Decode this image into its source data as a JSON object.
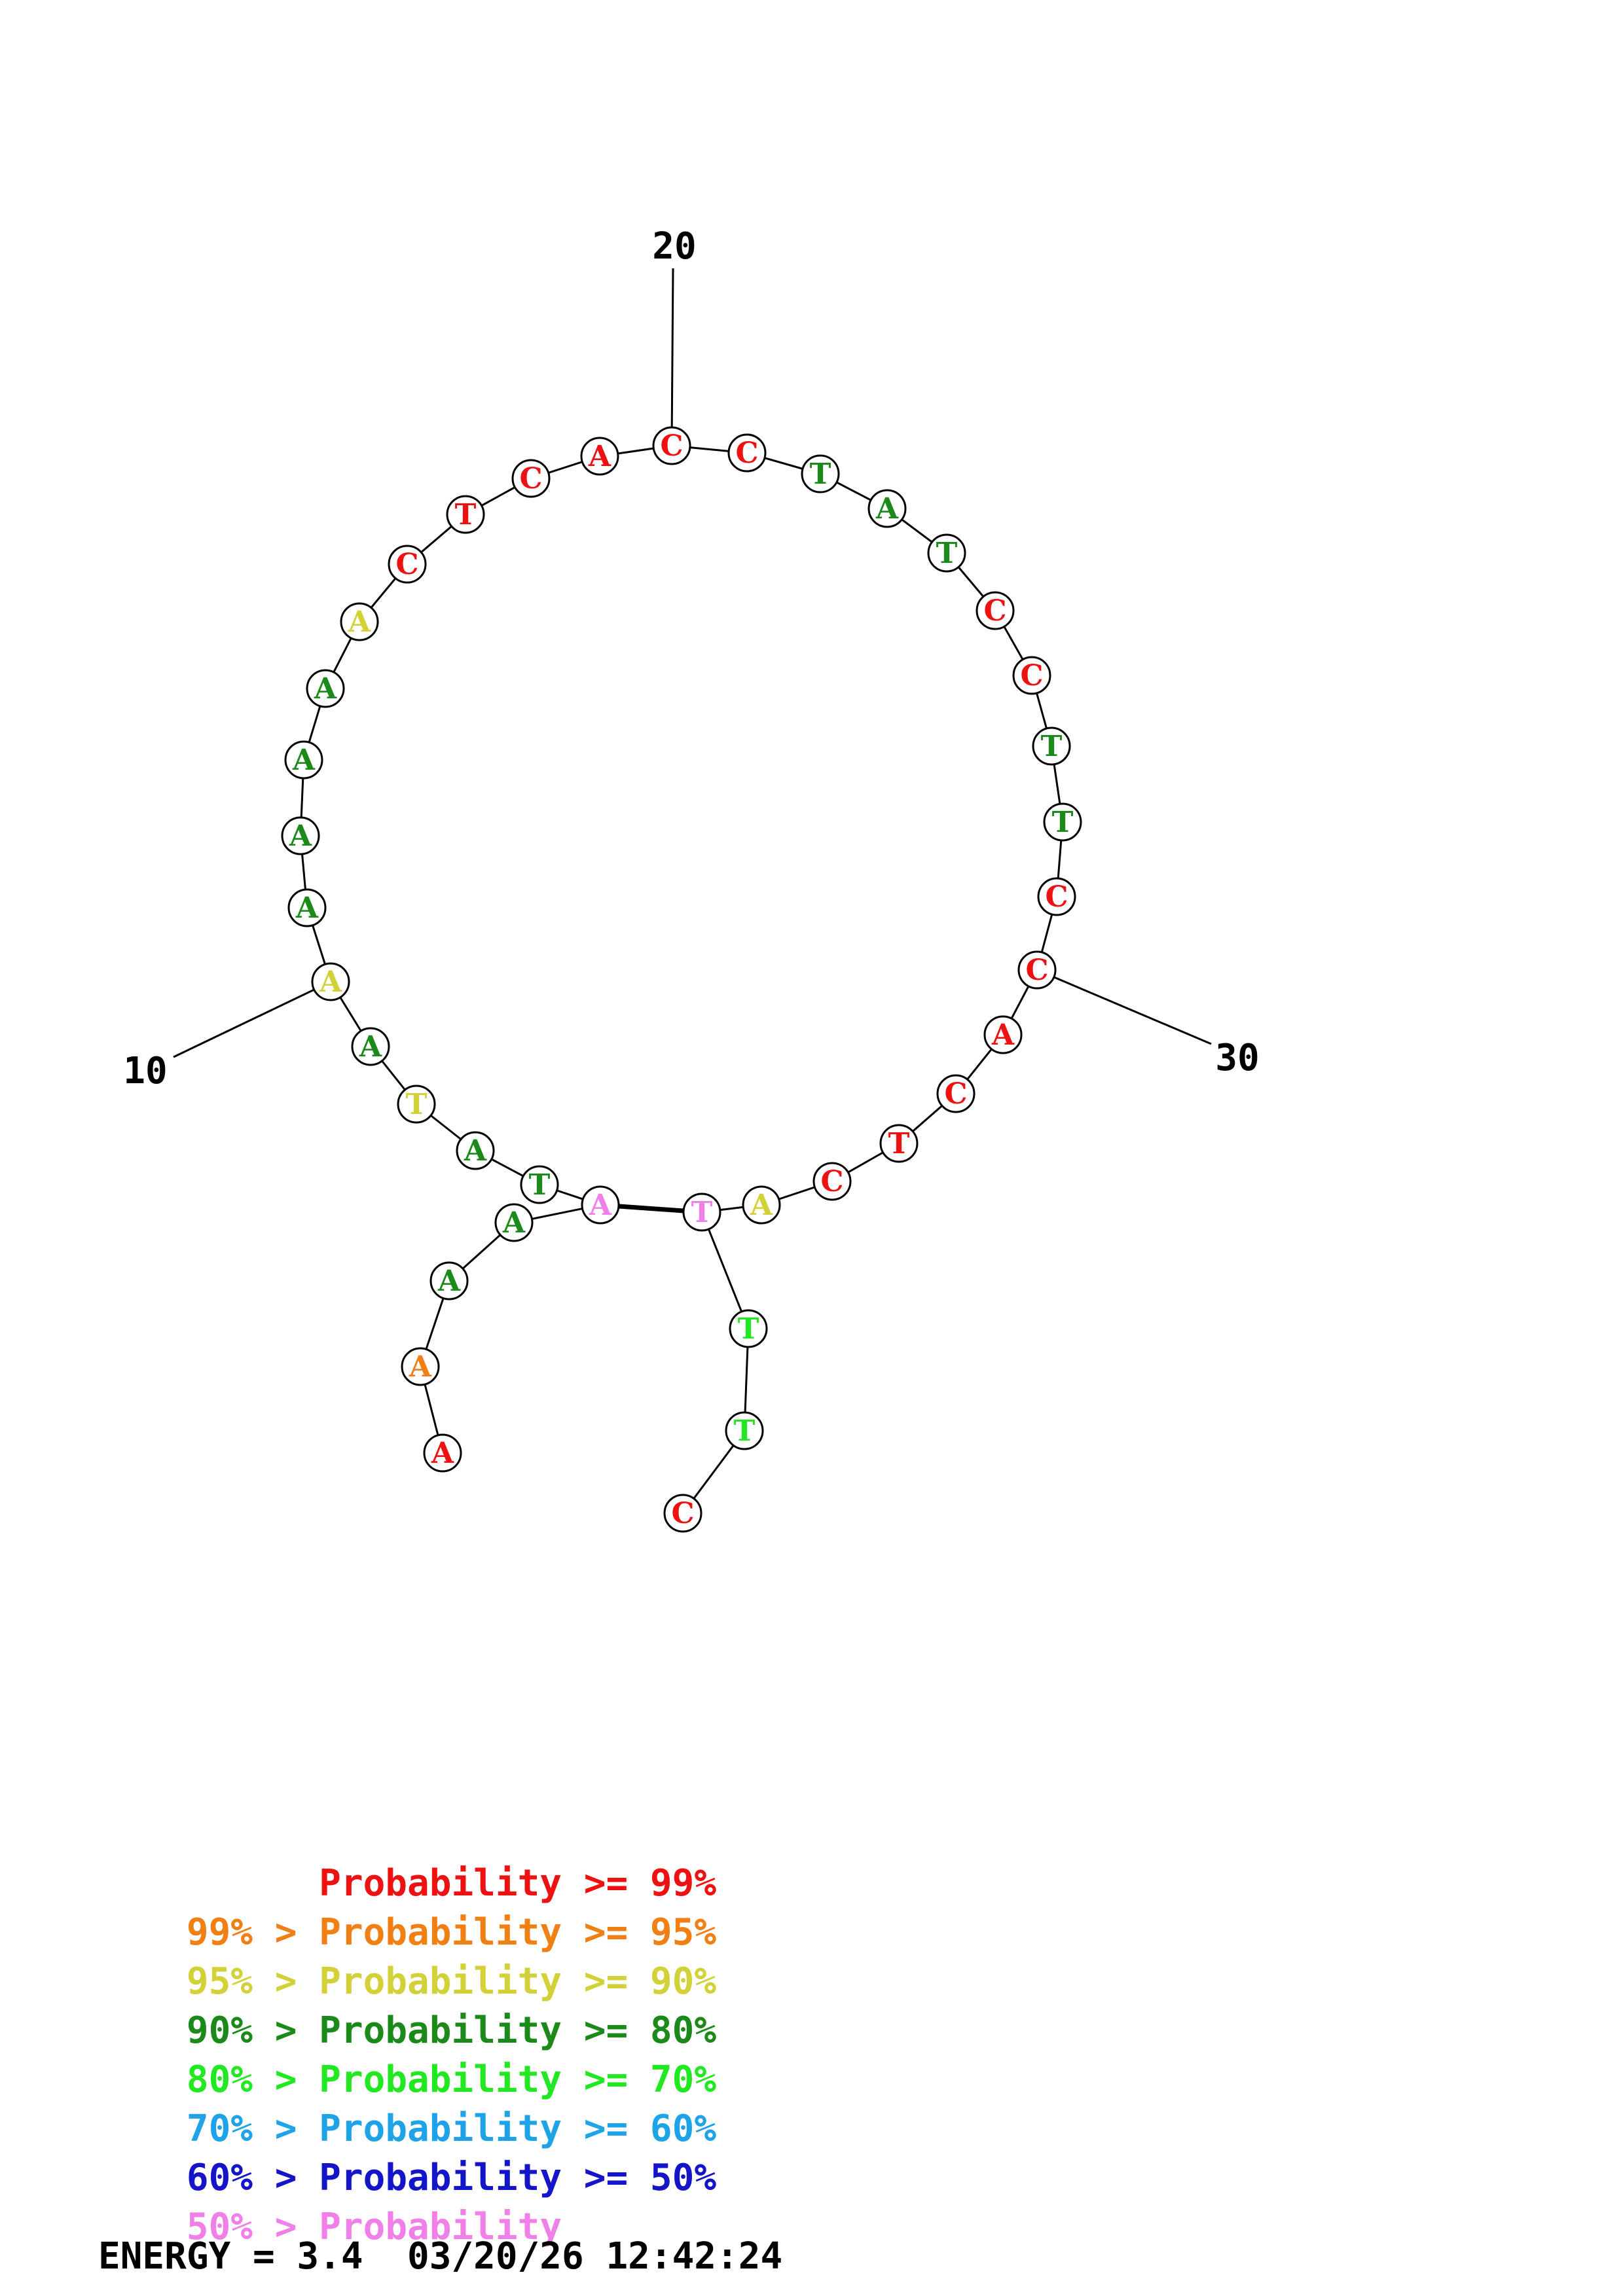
{
  "colors": {
    "p99": "#ee1111",
    "p95": "#f07f14",
    "p90": "#d2d238",
    "p80": "#1b8a1b",
    "p70": "#22e822",
    "p60": "#1ea3e8",
    "p50": "#1414c8",
    "plt50": "#f07fe8"
  },
  "sequence": [
    {
      "n": 1,
      "base": "A",
      "color": "p99"
    },
    {
      "n": 2,
      "base": "A",
      "color": "p95"
    },
    {
      "n": 3,
      "base": "A",
      "color": "p80"
    },
    {
      "n": 4,
      "base": "A",
      "color": "p80"
    },
    {
      "n": 5,
      "base": "A",
      "color": "plt50"
    },
    {
      "n": 6,
      "base": "T",
      "color": "p80"
    },
    {
      "n": 7,
      "base": "A",
      "color": "p80"
    },
    {
      "n": 8,
      "base": "T",
      "color": "p90"
    },
    {
      "n": 9,
      "base": "A",
      "color": "p80"
    },
    {
      "n": 10,
      "base": "A",
      "color": "p90"
    },
    {
      "n": 11,
      "base": "A",
      "color": "p80"
    },
    {
      "n": 12,
      "base": "A",
      "color": "p80"
    },
    {
      "n": 13,
      "base": "A",
      "color": "p80"
    },
    {
      "n": 14,
      "base": "A",
      "color": "p80"
    },
    {
      "n": 15,
      "base": "A",
      "color": "p90"
    },
    {
      "n": 16,
      "base": "C",
      "color": "p99"
    },
    {
      "n": 17,
      "base": "T",
      "color": "p99"
    },
    {
      "n": 18,
      "base": "C",
      "color": "p99"
    },
    {
      "n": 19,
      "base": "A",
      "color": "p99"
    },
    {
      "n": 20,
      "base": "C",
      "color": "p99"
    },
    {
      "n": 21,
      "base": "C",
      "color": "p99"
    },
    {
      "n": 22,
      "base": "T",
      "color": "p80"
    },
    {
      "n": 23,
      "base": "A",
      "color": "p80"
    },
    {
      "n": 24,
      "base": "T",
      "color": "p80"
    },
    {
      "n": 25,
      "base": "C",
      "color": "p99"
    },
    {
      "n": 26,
      "base": "C",
      "color": "p99"
    },
    {
      "n": 27,
      "base": "T",
      "color": "p80"
    },
    {
      "n": 28,
      "base": "T",
      "color": "p80"
    },
    {
      "n": 29,
      "base": "C",
      "color": "p99"
    },
    {
      "n": 30,
      "base": "C",
      "color": "p99"
    },
    {
      "n": 31,
      "base": "A",
      "color": "p99"
    },
    {
      "n": 32,
      "base": "C",
      "color": "p99"
    },
    {
      "n": 33,
      "base": "T",
      "color": "p99"
    },
    {
      "n": 34,
      "base": "C",
      "color": "p99"
    },
    {
      "n": 35,
      "base": "A",
      "color": "p90"
    },
    {
      "n": 36,
      "base": "T",
      "color": "plt50"
    },
    {
      "n": 37,
      "base": "T",
      "color": "p70"
    },
    {
      "n": 38,
      "base": "T",
      "color": "p70"
    },
    {
      "n": 39,
      "base": "C",
      "color": "p99"
    }
  ],
  "pairs": [
    [
      5,
      36
    ]
  ],
  "position_labels": [
    {
      "n": 10,
      "text": "10"
    },
    {
      "n": 20,
      "text": "20"
    },
    {
      "n": 30,
      "text": "30"
    }
  ],
  "legend": [
    {
      "lower": "",
      "label": "Probability",
      "upper": ">= 99%",
      "color": "p99"
    },
    {
      "lower": "99%",
      "label": "Probability",
      "upper": ">= 95%",
      "color": "p95"
    },
    {
      "lower": "95%",
      "label": "Probability",
      "upper": ">= 90%",
      "color": "p90"
    },
    {
      "lower": "90%",
      "label": "Probability",
      "upper": ">= 80%",
      "color": "p80"
    },
    {
      "lower": "80%",
      "label": "Probability",
      "upper": ">= 70%",
      "color": "p70"
    },
    {
      "lower": "70%",
      "label": "Probability",
      "upper": ">= 60%",
      "color": "p60"
    },
    {
      "lower": "60%",
      "label": "Probability",
      "upper": ">= 50%",
      "color": "p50"
    },
    {
      "lower": "50%",
      "label": "Probability",
      "upper": "",
      "color": "plt50"
    }
  ],
  "footer": {
    "energy_label": "ENERGY = 3.4",
    "timestamp": "03/20/26 12:42:24"
  }
}
